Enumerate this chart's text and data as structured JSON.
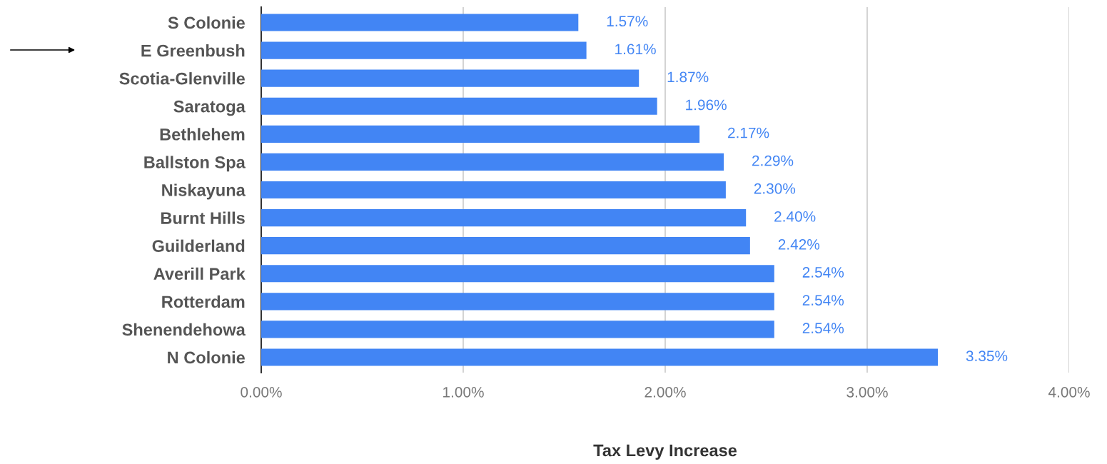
{
  "chart_data": {
    "type": "bar",
    "orientation": "horizontal",
    "xlabel": "Tax Levy Increase",
    "categories": [
      "S Colonie",
      "E Greenbush",
      "Scotia-Glenville",
      "Saratoga",
      "Bethlehem",
      "Ballston Spa",
      "Niskayuna",
      "Burnt Hills",
      "Guilderland",
      "Averill Park",
      "Rotterdam",
      "Shenendehowa",
      "N Colonie"
    ],
    "values": [
      1.57,
      1.61,
      1.87,
      1.96,
      2.17,
      2.29,
      2.3,
      2.4,
      2.42,
      2.54,
      2.54,
      2.54,
      3.35
    ],
    "value_labels": [
      "1.57%",
      "1.61%",
      "1.87%",
      "1.96%",
      "2.17%",
      "2.29%",
      "2.30%",
      "2.40%",
      "2.42%",
      "2.54%",
      "2.54%",
      "2.54%",
      "3.35%"
    ],
    "color": "#4285f4",
    "xlim": [
      0,
      4
    ],
    "xticks": [
      {
        "value": 0,
        "label": "0.00%"
      },
      {
        "value": 1,
        "label": "1.00%"
      },
      {
        "value": 2,
        "label": "2.00%"
      },
      {
        "value": 3,
        "label": "3.00%"
      },
      {
        "value": 4,
        "label": "4.00%"
      }
    ],
    "grid": "x",
    "legend": false
  }
}
